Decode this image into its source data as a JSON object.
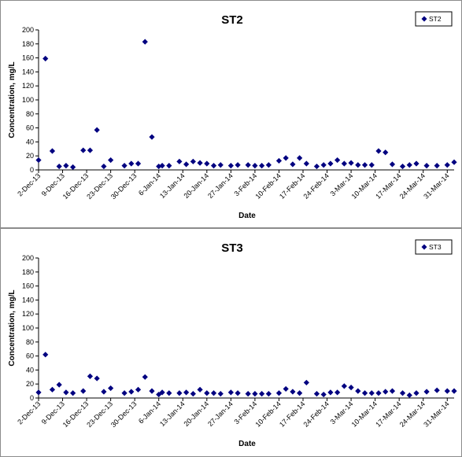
{
  "chart_data": [
    {
      "type": "scatter",
      "title": "ST2",
      "xlabel": "Date",
      "ylabel": "Concentration, mg/L",
      "ylim": [
        0,
        200
      ],
      "yticks": [
        0,
        20,
        40,
        60,
        80,
        100,
        120,
        140,
        160,
        180,
        200
      ],
      "xlim": [
        "2-Dec-13",
        "2-Apr-14"
      ],
      "xticks": [
        "2-Dec-13",
        "9-Dec-13",
        "16-Dec-13",
        "23-Dec-13",
        "30-Dec-13",
        "6-Jan-14",
        "13-Jan-14",
        "20-Jan-14",
        "27-Jan-14",
        "3-Feb-14",
        "10-Feb-14",
        "17-Feb-14",
        "24-Feb-14",
        "3-Mar-14",
        "10-Mar-14",
        "17-Mar-14",
        "24-Mar-14",
        "31-Mar-14"
      ],
      "grid": false,
      "legend": "top-right",
      "marker_color": "#000080",
      "series": [
        {
          "name": "ST2",
          "x": [
            "2-Dec-13",
            "3-Dec-13",
            "4-Dec-13",
            "6-Dec-13",
            "7-Dec-13",
            "8-Dec-13",
            "10-Dec-13",
            "11-Dec-13",
            "12-Dec-13",
            "13-Dec-13",
            "15-Dec-13",
            "17-Dec-13",
            "18-Dec-13",
            "19-Dec-13",
            "21-Dec-13",
            "22-Dec-13",
            "23-Dec-13",
            "24-Dec-13",
            "26-Dec-13",
            "27-Dec-13",
            "29-Dec-13",
            "30-Dec-13",
            "31-Dec-13",
            "2-Jan-14",
            "4-Jan-14",
            "5-Jan-14",
            "7-Jan-14",
            "8-Jan-14",
            "10-Jan-14",
            "11-Jan-14",
            "12-Jan-14",
            "14-Jan-14",
            "16-Jan-14",
            "17-Jan-14",
            "18-Jan-14",
            "20-Jan-14",
            "21-Jan-14",
            "22-Jan-14",
            "24-Jan-14",
            "25-Jan-14",
            "27-Jan-14",
            "28-Jan-14",
            "30-Jan-14",
            "31-Jan-14",
            "1-Feb-14",
            "3-Feb-14",
            "5-Feb-14",
            "6-Feb-14",
            "7-Feb-14",
            "9-Feb-14",
            "10-Feb-14",
            "11-Feb-14",
            "13-Feb-14",
            "14-Feb-14",
            "16-Feb-14",
            "17-Feb-14",
            "18-Feb-14",
            "20-Feb-14",
            "21-Feb-14",
            "23-Feb-14",
            "24-Feb-14",
            "25-Feb-14",
            "27-Feb-14",
            "28-Feb-14",
            "2-Mar-14",
            "3-Mar-14",
            "4-Mar-14",
            "6-Mar-14",
            "7-Mar-14",
            "9-Mar-14",
            "10-Mar-14",
            "11-Mar-14",
            "13-Mar-14",
            "14-Mar-14",
            "16-Mar-14",
            "17-Mar-14",
            "18-Mar-14",
            "20-Mar-14",
            "21-Mar-14",
            "22-Mar-14",
            "23-Mar-14",
            "24-Mar-14",
            "25-Mar-14",
            "26-Mar-14",
            "28-Mar-14",
            "29-Mar-14",
            "30-Mar-14",
            "31-Mar-14"
          ],
          "y": [
            14,
            159,
            27,
            5,
            6,
            4,
            28,
            28,
            57,
            5,
            14,
            8,
            9,
            9,
            183,
            47,
            5,
            6,
            6,
            12,
            8,
            12,
            10,
            9,
            6,
            7,
            6,
            7,
            7,
            6,
            6,
            7,
            13,
            17,
            8,
            17,
            9,
            5,
            7,
            9,
            14,
            9,
            10,
            7,
            7,
            7,
            27,
            25,
            8,
            5,
            7,
            9,
            12,
            0,
            0,
            0,
            0,
            0,
            0,
            0,
            0,
            0,
            0,
            0,
            0,
            0,
            0,
            0,
            0,
            0,
            0,
            0,
            0,
            0,
            0,
            0,
            0,
            0,
            0,
            0,
            0,
            0,
            0,
            0,
            0,
            0,
            0,
            0
          ]
        }
      ]
    },
    {
      "type": "scatter",
      "title": "ST3",
      "xlabel": "Date",
      "ylabel": "Concentration, mg/L",
      "ylim": [
        0,
        200
      ],
      "yticks": [
        0,
        20,
        40,
        60,
        80,
        100,
        120,
        140,
        160,
        180,
        200
      ],
      "xlim": [
        "2-Dec-13",
        "2-Apr-14"
      ],
      "xticks": [
        "2-Dec-13",
        "9-Dec-13",
        "16-Dec-13",
        "23-Dec-13",
        "30-Dec-13",
        "6-Jan-14",
        "13-Jan-14",
        "20-Jan-14",
        "27-Jan-14",
        "3-Feb-14",
        "10-Feb-14",
        "17-Feb-14",
        "24-Feb-14",
        "3-Mar-14",
        "10-Mar-14",
        "17-Mar-14",
        "24-Mar-14",
        "31-Mar-14"
      ],
      "grid": false,
      "legend": "top-right",
      "marker_color": "#000080",
      "series": [
        {
          "name": "ST3",
          "x": [],
          "y": []
        }
      ]
    }
  ]
}
